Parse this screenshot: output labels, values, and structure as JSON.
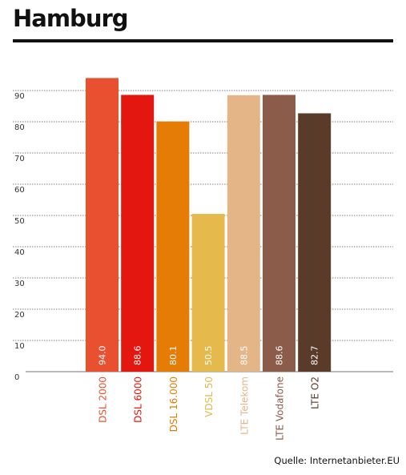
{
  "title": "Hamburg",
  "source": "Quelle: Internetanbieter.EU",
  "chart_data": {
    "type": "bar",
    "title": "Hamburg",
    "xlabel": "",
    "ylabel": "",
    "ylim": [
      0,
      100
    ],
    "yticks": [
      0,
      10,
      20,
      30,
      40,
      50,
      60,
      70,
      80,
      90
    ],
    "grid": true,
    "categories": [
      "DSL 2000",
      "DSL 6000",
      "DSL 16.000",
      "VDSL 50",
      "LTE Telekom",
      "LTE Vodafone",
      "LTE O2"
    ],
    "values": [
      94.0,
      88.6,
      80.1,
      50.5,
      88.5,
      88.6,
      82.7
    ],
    "value_labels": [
      "94.0",
      "88.6",
      "80.1",
      "50.5",
      "88.5",
      "88.6",
      "82.7"
    ],
    "colors": [
      "#e8502f",
      "#e3170f",
      "#e57c06",
      "#e5b94c",
      "#e4b587",
      "#8a5c49",
      "#5a3a29"
    ]
  }
}
